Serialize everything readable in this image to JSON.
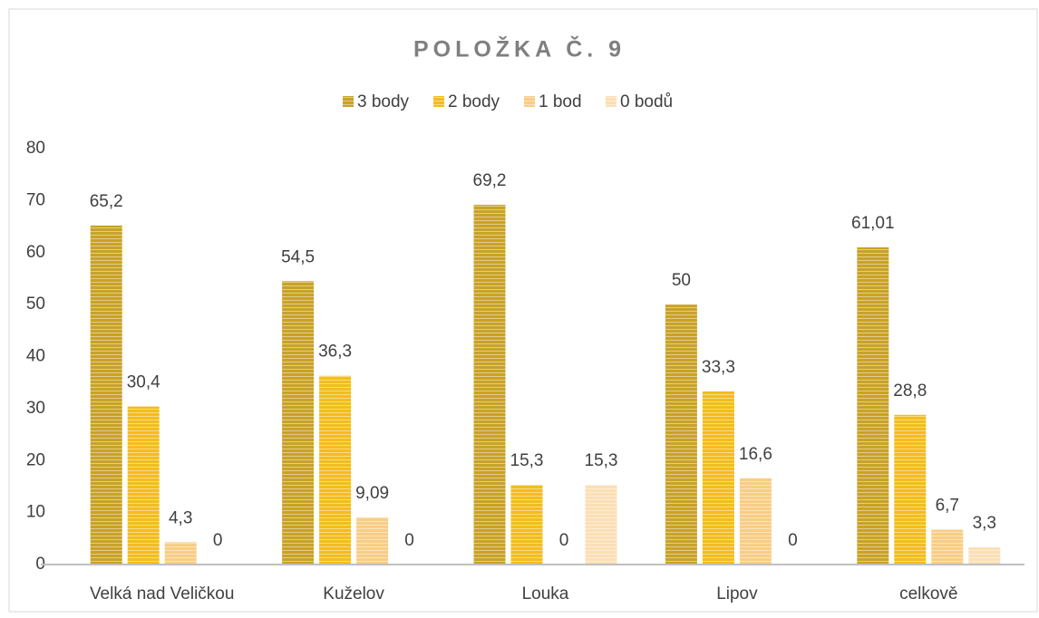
{
  "chart_data": {
    "type": "bar",
    "title": "POLOŽKA Č. 9",
    "categories": [
      "Velká nad Veličkou",
      "Kuželov",
      "Louka",
      "Lipov",
      "celkově"
    ],
    "series": [
      {
        "name": "3 body",
        "color": "#c9a227",
        "values": [
          65.2,
          54.5,
          69.2,
          50,
          61.01
        ],
        "value_labels": [
          "65,2",
          "54,5",
          "69,2",
          "50",
          "61,01"
        ]
      },
      {
        "name": "2 body",
        "color": "#f2bd1d",
        "values": [
          30.4,
          36.3,
          15.3,
          33.3,
          28.8
        ],
        "value_labels": [
          "30,4",
          "36,3",
          "15,3",
          "33,3",
          "28,8"
        ]
      },
      {
        "name": "1 bod",
        "color": "#f8cd85",
        "values": [
          4.3,
          9.09,
          0,
          16.6,
          6.7
        ],
        "value_labels": [
          "4,3",
          "9,09",
          "0",
          "16,6",
          "6,7"
        ]
      },
      {
        "name": "0 bodů",
        "color": "#fbdfb5",
        "values": [
          0,
          0,
          15.3,
          0,
          3.3
        ],
        "value_labels": [
          "0",
          "0",
          "15,3",
          "0",
          "3,3"
        ]
      }
    ],
    "ylim": [
      0,
      80
    ],
    "yticks": [
      0,
      10,
      20,
      30,
      40,
      50,
      60,
      70,
      80
    ],
    "grid": false,
    "legend": "top"
  }
}
